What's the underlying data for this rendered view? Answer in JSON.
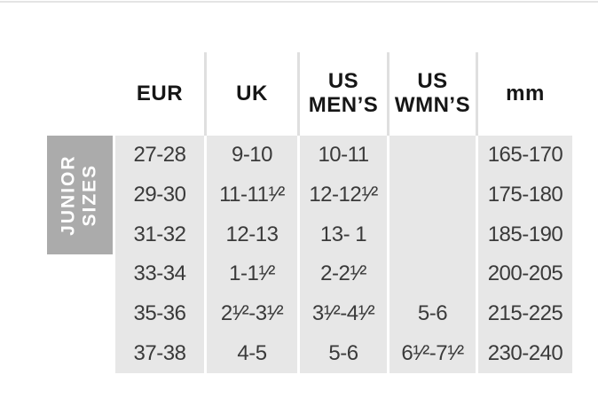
{
  "chart_data": {
    "type": "table",
    "group_label": "JUNIOR\nSIZES",
    "columns": [
      "EUR",
      "UK",
      "US\nMEN’S",
      "US\nWMN’S",
      "mm"
    ],
    "rows": [
      [
        "27-28",
        "9-10",
        "10-11",
        "",
        "165-170"
      ],
      [
        "29-30",
        "11-11¹⁄²",
        "12-12¹⁄²",
        "",
        "175-180"
      ],
      [
        "31-32",
        "12-13",
        "13- 1",
        "",
        "185-190"
      ],
      [
        "33-34",
        "1-1¹⁄²",
        "2-2¹⁄²",
        "",
        "200-205"
      ],
      [
        "35-36",
        "2¹⁄²-3¹⁄²",
        "3¹⁄²-4¹⁄²",
        "5-6",
        "215-225"
      ],
      [
        "37-38",
        "4-5",
        "5-6",
        "6¹⁄²-7¹⁄²",
        "230-240"
      ]
    ],
    "layout": {
      "grid": "off",
      "legend": "none",
      "note": "column stripes light gray, vertical group label on left spans first three rows"
    },
    "colors": {
      "cell_background": "#e7e7e7",
      "group_label_background": "#ababab",
      "group_label_text": "#ffffff",
      "header_text": "#161616",
      "cell_text": "#3a3a3a",
      "header_separator": "#dfdfdf",
      "top_rule": "#e4e4e4"
    }
  }
}
